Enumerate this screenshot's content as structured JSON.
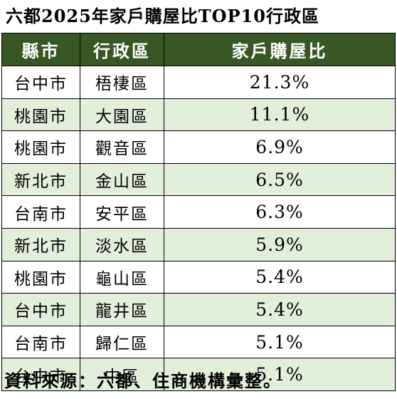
{
  "title": "六都2025年家戶購屋比TOP10行政區",
  "headers": [
    "縣市",
    "行政區",
    "家戶購屋比"
  ],
  "rows": [
    {
      "city": "台中市",
      "district": "梧棲區",
      "ratio": "21.3%"
    },
    {
      "city": "桃園市",
      "district": "大園區",
      "ratio": "11.1%"
    },
    {
      "city": "桃園市",
      "district": "觀音區",
      "ratio": "6.9%"
    },
    {
      "city": "新北市",
      "district": "金山區",
      "ratio": "6.5%"
    },
    {
      "city": "台南市",
      "district": "安平區",
      "ratio": "6.3%"
    },
    {
      "city": "新北市",
      "district": "淡水區",
      "ratio": "5.9%"
    },
    {
      "city": "桃園市",
      "district": "龜山區",
      "ratio": "5.4%"
    },
    {
      "city": "台中市",
      "district": "龍井區",
      "ratio": "5.4%"
    },
    {
      "city": "台南市",
      "district": "歸仁區",
      "ratio": "5.1%"
    },
    {
      "city": "台中市",
      "district": "中區",
      "ratio": "5.1%"
    }
  ],
  "source": "資料來源：六都、住商機構彙整。",
  "colors": {
    "header_bg": "#385724",
    "header_text": "#ffffff",
    "alt_row_bg": "#e2efda"
  }
}
